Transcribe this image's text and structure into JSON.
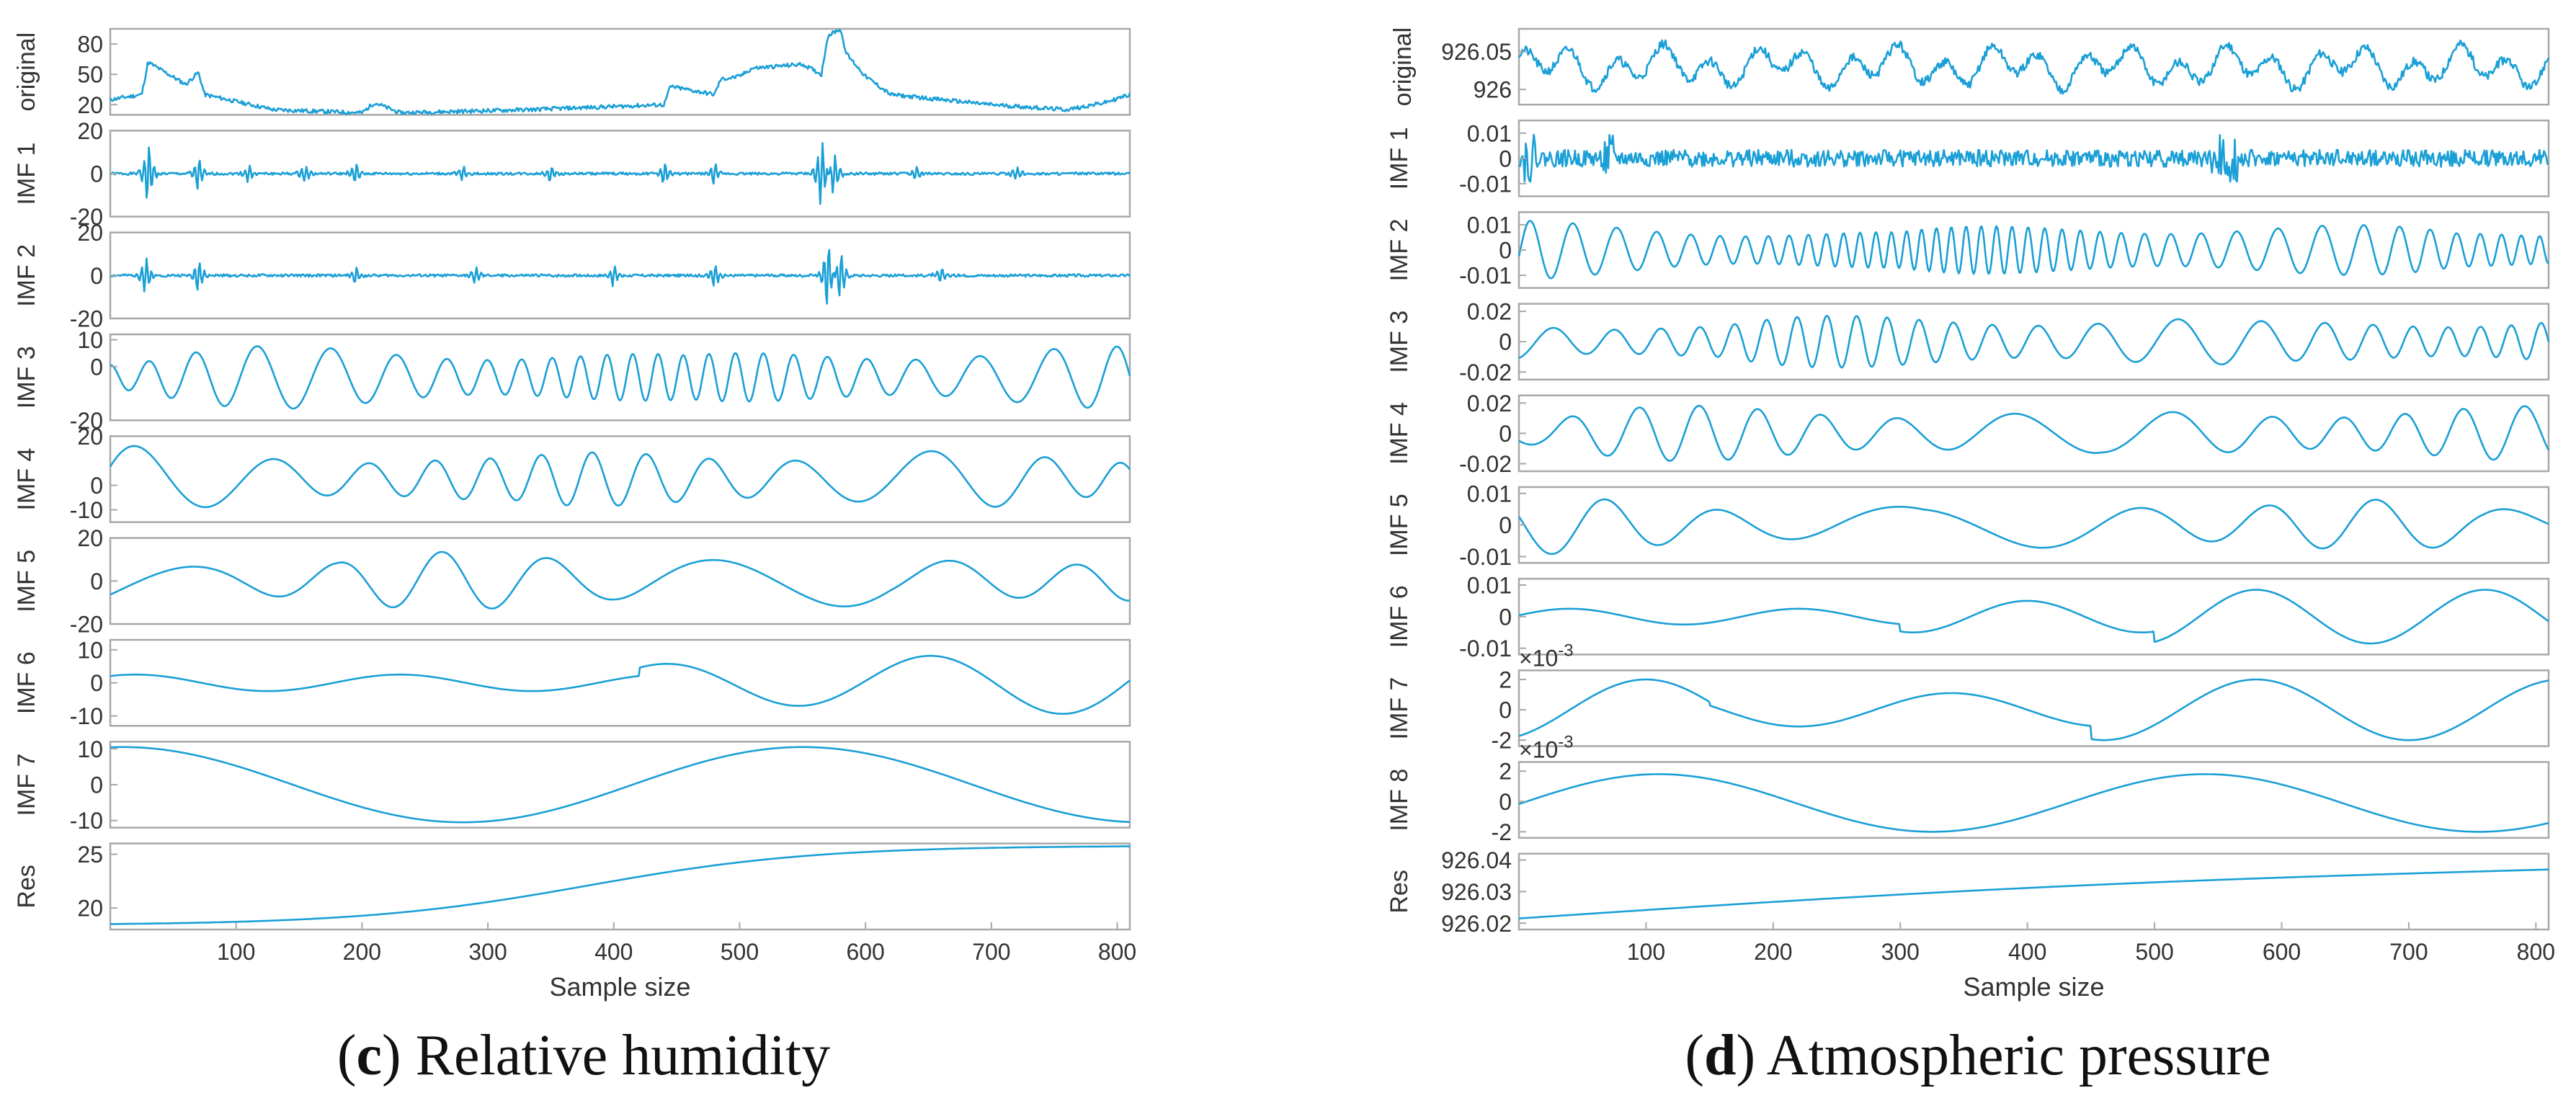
{
  "colors": {
    "line": "#1a9fd6",
    "frame": "#a8a8a8",
    "text": "#333333"
  },
  "panels": [
    {
      "id": "c",
      "caption_letter": "c",
      "caption_text": "Relative humidity",
      "xlabel": "Sample size",
      "xticks": [
        "100",
        "200",
        "300",
        "400",
        "500",
        "600",
        "700",
        "800"
      ],
      "xtick_values": [
        100,
        200,
        300,
        400,
        500,
        600,
        700,
        800
      ],
      "xlim": [
        0,
        810
      ],
      "rows": [
        {
          "label": "original",
          "yticks": [
            "80",
            "50",
            "20"
          ],
          "ytick_values": [
            80,
            50,
            20
          ],
          "ylim": [
            10,
            95
          ],
          "kind": "original_c",
          "seed": 11
        },
        {
          "label": "IMF 1",
          "yticks": [
            "20",
            "0",
            "-20"
          ],
          "ytick_values": [
            20,
            0,
            -20
          ],
          "ylim": [
            -20,
            20
          ],
          "kind": "spiky",
          "seed": 1
        },
        {
          "label": "IMF 2",
          "yticks": [
            "20",
            "0",
            "-20"
          ],
          "ytick_values": [
            20,
            0,
            -20
          ],
          "ylim": [
            -20,
            20
          ],
          "kind": "spiky2",
          "seed": 2
        },
        {
          "label": "IMF 3",
          "yticks": [
            "10",
            "0",
            "-20"
          ],
          "ytick_values": [
            10,
            0,
            -20
          ],
          "ylim": [
            -20,
            12
          ],
          "kind": "osc",
          "seed": 3,
          "period": 24
        },
        {
          "label": "IMF 4",
          "yticks": [
            "20",
            "0",
            "-10"
          ],
          "ytick_values": [
            20,
            0,
            -10
          ],
          "ylim": [
            -15,
            20
          ],
          "kind": "osc",
          "seed": 4,
          "period": 48
        },
        {
          "label": "IMF 5",
          "yticks": [
            "20",
            "0",
            "-20"
          ],
          "ytick_values": [
            20,
            0,
            -20
          ],
          "ylim": [
            -20,
            20
          ],
          "kind": "osc",
          "seed": 5,
          "period": 95
        },
        {
          "label": "IMF 6",
          "yticks": [
            "10",
            "0",
            "-10"
          ],
          "ytick_values": [
            10,
            0,
            -10
          ],
          "ylim": [
            -13,
            13
          ],
          "kind": "imf6_c",
          "seed": 6
        },
        {
          "label": "IMF 7",
          "yticks": [
            "10",
            "0",
            "-10"
          ],
          "ytick_values": [
            10,
            0,
            -10
          ],
          "ylim": [
            -12,
            12
          ],
          "kind": "imf7_c",
          "seed": 7
        },
        {
          "label": "Res",
          "yticks": [
            "25",
            "20"
          ],
          "ytick_values": [
            25,
            20
          ],
          "ylim": [
            18,
            26
          ],
          "kind": "res_c",
          "seed": 8
        }
      ]
    },
    {
      "id": "d",
      "caption_letter": "d",
      "caption_text": "Atmospheric pressure",
      "xlabel": "Sample size",
      "xticks": [
        "100",
        "200",
        "300",
        "400",
        "500",
        "600",
        "700",
        "800"
      ],
      "xtick_values": [
        100,
        200,
        300,
        400,
        500,
        600,
        700,
        800
      ],
      "xlim": [
        0,
        810
      ],
      "rows": [
        {
          "label": "original",
          "yticks": [
            "926.05",
            "926"
          ],
          "ytick_values": [
            926.05,
            926
          ],
          "ylim": [
            925.98,
            926.08
          ],
          "kind": "original_d",
          "seed": 21
        },
        {
          "label": "IMF 1",
          "yticks": [
            "0.01",
            "0",
            "-0.01"
          ],
          "ytick_values": [
            0.01,
            0,
            -0.01
          ],
          "ylim": [
            -0.015,
            0.015
          ],
          "kind": "noise",
          "seed": 22
        },
        {
          "label": "IMF 2",
          "yticks": [
            "0.01",
            "0",
            "-0.01"
          ],
          "ytick_values": [
            0.01,
            0,
            -0.01
          ],
          "ylim": [
            -0.015,
            0.015
          ],
          "kind": "osc",
          "seed": 23,
          "period": 14
        },
        {
          "label": "IMF 3",
          "yticks": [
            "0.02",
            "0",
            "-0.02"
          ],
          "ytick_values": [
            0.02,
            0,
            -0.02
          ],
          "ylim": [
            -0.025,
            0.025
          ],
          "kind": "osc",
          "seed": 24,
          "period": 28
        },
        {
          "label": "IMF 4",
          "yticks": [
            "0.02",
            "0",
            "-0.02"
          ],
          "ytick_values": [
            0.02,
            0,
            -0.02
          ],
          "ylim": [
            -0.025,
            0.025
          ],
          "kind": "osc",
          "seed": 25,
          "period": 55
        },
        {
          "label": "IMF 5",
          "yticks": [
            "0.01",
            "0",
            "-0.01"
          ],
          "ytick_values": [
            0.01,
            0,
            -0.01
          ],
          "ylim": [
            -0.012,
            0.012
          ],
          "kind": "osc",
          "seed": 26,
          "period": 100
        },
        {
          "label": "IMF 6",
          "yticks": [
            "0.01",
            "0",
            "-0.01"
          ],
          "ytick_values": [
            0.01,
            0,
            -0.01
          ],
          "ylim": [
            -0.012,
            0.012
          ],
          "kind": "imf6_d",
          "seed": 27
        },
        {
          "label": "IMF 7",
          "yticks": [
            "2",
            "0",
            "-2"
          ],
          "ytick_values": [
            2,
            0,
            -2
          ],
          "ylim": [
            -2.4,
            2.6
          ],
          "kind": "imf7_d",
          "seed": 28,
          "exponent": "×10",
          "exponent_power": "-3"
        },
        {
          "label": "IMF 8",
          "yticks": [
            "2",
            "0",
            "-2"
          ],
          "ytick_values": [
            2,
            0,
            -2
          ],
          "ylim": [
            -2.4,
            2.6
          ],
          "kind": "imf8_d",
          "seed": 29,
          "exponent": "×10",
          "exponent_power": "-3"
        },
        {
          "label": "Res",
          "yticks": [
            "926.04",
            "926.03",
            "926.02"
          ],
          "ytick_values": [
            926.04,
            926.03,
            926.02
          ],
          "ylim": [
            926.018,
            926.042
          ],
          "kind": "res_d",
          "seed": 30
        }
      ]
    }
  ]
}
